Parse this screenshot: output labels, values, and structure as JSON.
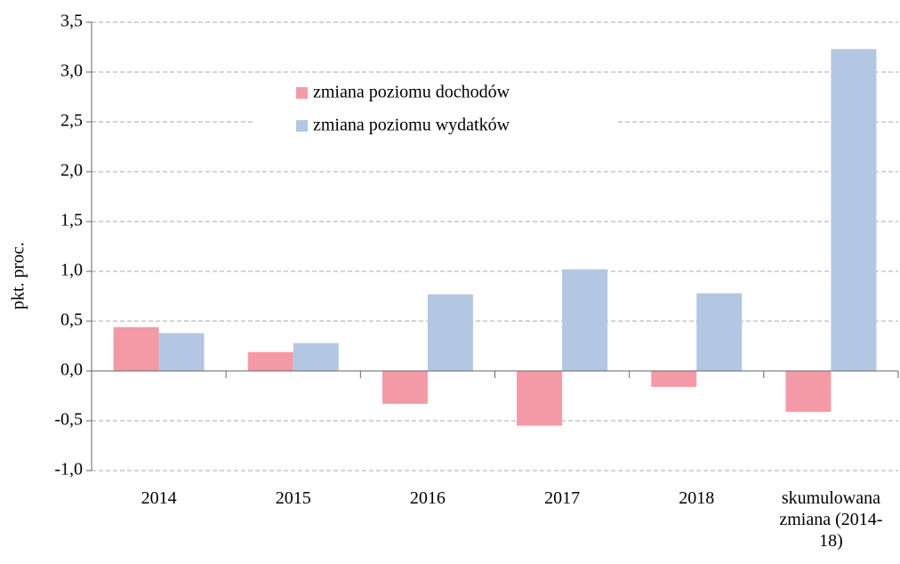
{
  "chart_data": {
    "type": "bar",
    "y_label": "pkt. proc.",
    "categories": [
      "2014",
      "2015",
      "2016",
      "2017",
      "2018",
      "skumulowana zmiana (2014-18)"
    ],
    "series": [
      {
        "name": "zmiana poziomu dochodów",
        "color": "#f49aa6",
        "values": [
          0.44,
          0.19,
          -0.33,
          -0.55,
          -0.16,
          -0.41
        ]
      },
      {
        "name": "zmiana poziomu wydatków",
        "color": "#b3c7e3",
        "values": [
          0.38,
          0.28,
          0.77,
          1.02,
          0.78,
          3.23
        ]
      }
    ],
    "ylim": [
      -1.0,
      3.5
    ],
    "yticks": [
      {
        "value": -1.0,
        "label": "-1,0"
      },
      {
        "value": -0.5,
        "label": "-0,5"
      },
      {
        "value": 0,
        "label": "0,0"
      },
      {
        "value": 0.5,
        "label": "0,5"
      },
      {
        "value": 1.0,
        "label": "1,0"
      },
      {
        "value": 1.5,
        "label": "1,5"
      },
      {
        "value": 2.0,
        "label": "2,0"
      },
      {
        "value": 2.5,
        "label": "2,5"
      },
      {
        "value": 3.0,
        "label": "3,0"
      },
      {
        "value": 3.5,
        "label": "3,5"
      }
    ],
    "grid": true
  }
}
